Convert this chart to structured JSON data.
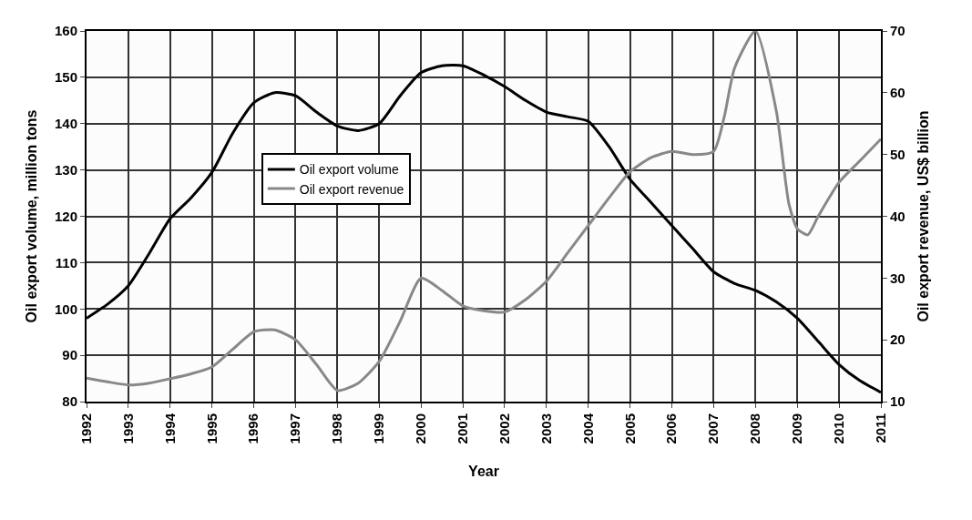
{
  "chart_data": {
    "type": "line",
    "xlabel": "Year",
    "ylabel": "Oil export volume, million tons",
    "y2label": "Oil export revenue, US$ billion",
    "xlim": [
      1992,
      2011
    ],
    "xticks": [
      1992,
      1993,
      1994,
      1995,
      1996,
      1997,
      1998,
      1999,
      2000,
      2001,
      2002,
      2003,
      2004,
      2005,
      2006,
      2007,
      2008,
      2009,
      2010,
      2011
    ],
    "ylim": [
      80,
      160
    ],
    "yticks": [
      80,
      90,
      100,
      110,
      120,
      130,
      140,
      150,
      160
    ],
    "y2lim": [
      10,
      70
    ],
    "y2ticks": [
      10,
      20,
      30,
      40,
      50,
      60,
      70
    ],
    "grid": true,
    "legend": "center left",
    "line_style": "solid",
    "series": [
      {
        "name": "Oil export volume",
        "color": "#000000",
        "x": [
          1992,
          1992.5,
          1993,
          1993.5,
          1994,
          1994.5,
          1995,
          1995.5,
          1996,
          1996.5,
          1997,
          1997.5,
          1998,
          1998.5,
          1999,
          1999.5,
          2000,
          2000.5,
          2001,
          2001.5,
          2002,
          2002.5,
          2003,
          2003.5,
          2004,
          2004.5,
          2005,
          2005.5,
          2006,
          2006.5,
          2007,
          2007.5,
          2008,
          2008.5,
          2009,
          2009.5,
          2010,
          2010.5,
          2011
        ],
        "values": [
          98,
          101,
          105,
          112,
          119.5,
          124,
          129.5,
          138,
          144.5,
          146.7,
          146,
          142.5,
          139.5,
          138.5,
          140,
          146,
          151,
          152.5,
          152.5,
          150.5,
          148,
          145,
          142.5,
          141.5,
          140.5,
          135,
          128,
          123,
          118,
          113,
          108,
          105.5,
          104,
          101.5,
          98,
          93,
          88,
          84.5,
          82
        ]
      },
      {
        "name": "Oil export revenue",
        "color": "#888888",
        "axis": "y2",
        "x": [
          1992,
          1992.5,
          1993,
          1993.5,
          1994,
          1994.5,
          1995,
          1995.5,
          1996,
          1996.5,
          1997,
          1997.5,
          1998,
          1998.5,
          1999,
          1999.5,
          2000,
          2000.5,
          2001,
          2001.5,
          2002,
          2002.5,
          2003,
          2003.5,
          2004,
          2004.5,
          2005,
          2005.5,
          2006,
          2006.5,
          2007,
          2007.25,
          2007.5,
          2008,
          2008.5,
          2008.8,
          2009,
          2009.25,
          2009.5,
          2010,
          2010.5,
          2011
        ],
        "values": [
          13.8,
          13.2,
          12.7,
          13,
          13.7,
          14.5,
          15.6,
          18.5,
          21.3,
          21.6,
          20,
          16,
          11.8,
          13,
          16.5,
          23,
          30,
          28,
          25.5,
          24.7,
          24.5,
          26.5,
          29.5,
          34,
          38.5,
          43,
          47.2,
          49.5,
          50.5,
          50,
          50.5,
          56,
          64,
          70,
          57,
          42,
          38,
          37,
          40,
          45.5,
          49,
          52.5
        ]
      }
    ]
  }
}
